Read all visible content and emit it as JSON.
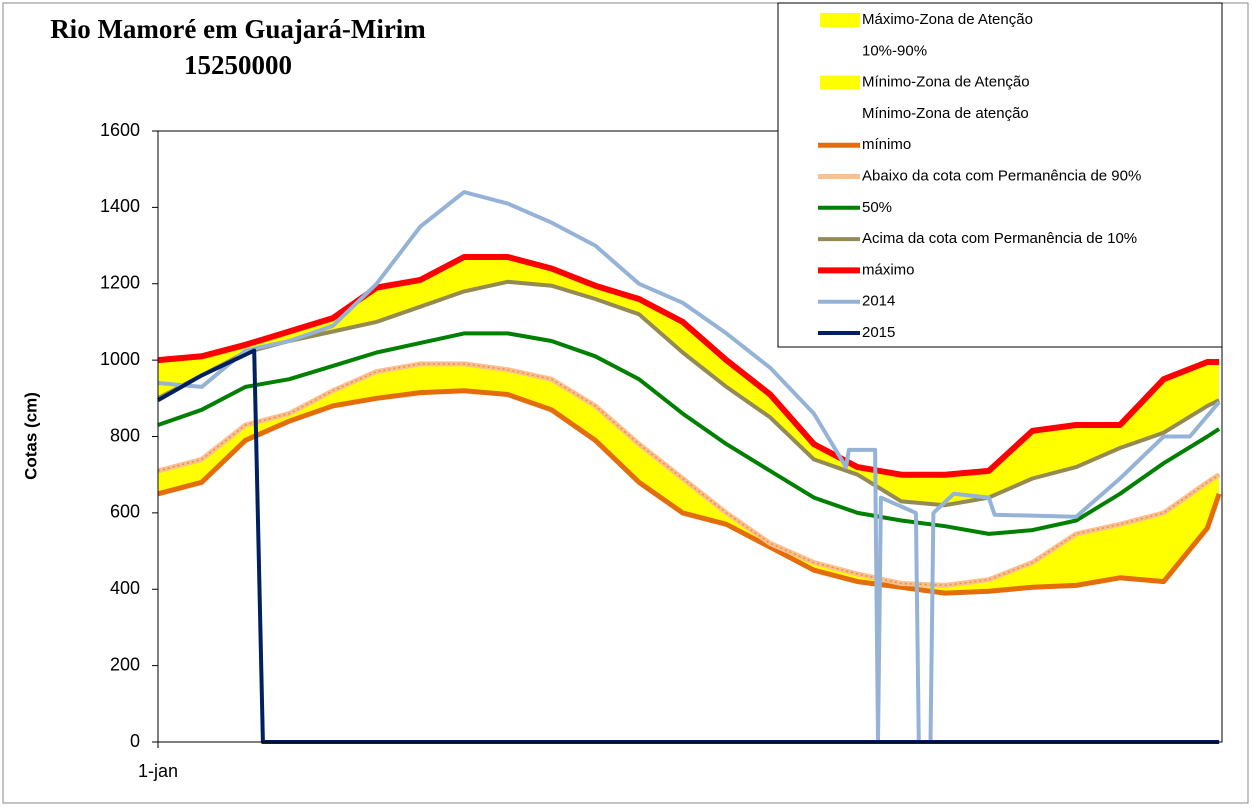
{
  "chart_data": {
    "type": "line",
    "title": "Rio Mamoré em Guajará-Mirim",
    "subtitle": "15250000",
    "y_label": "Cotas (cm)",
    "xlim": [
      0,
      365
    ],
    "xticks": [
      {
        "value": 0,
        "label": "1-jan"
      }
    ],
    "ylim": [
      0,
      1600
    ],
    "yticks": [
      0,
      200,
      400,
      600,
      800,
      1000,
      1200,
      1400,
      1600
    ],
    "x": [
      0,
      15,
      30,
      45,
      60,
      75,
      90,
      105,
      120,
      135,
      150,
      165,
      180,
      195,
      210,
      225,
      240,
      255,
      270,
      285,
      300,
      315,
      330,
      345,
      360,
      364
    ],
    "bands": [
      {
        "name": "Máximo-Zona de Atenção",
        "color": "#ffff00"
      },
      {
        "name": "10%-90%",
        "color": "#ffffff"
      },
      {
        "name": "Mínimo-Zona de Atenção",
        "color": "#ffff00"
      },
      {
        "name": "Mínimo-Zona de atenção",
        "color": "#ffffff"
      }
    ],
    "series": [
      {
        "name": "mínimo",
        "color": "#e46c0a",
        "values": [
          650,
          680,
          790,
          840,
          880,
          900,
          915,
          920,
          910,
          870,
          790,
          680,
          600,
          570,
          510,
          450,
          420,
          405,
          390,
          395,
          405,
          410,
          430,
          420,
          560,
          650
        ]
      },
      {
        "name": "Abaixo da cota com Permanência de 90%",
        "color": "#fac090",
        "values": [
          710,
          740,
          830,
          860,
          920,
          970,
          990,
          990,
          975,
          950,
          880,
          780,
          690,
          600,
          520,
          470,
          440,
          415,
          410,
          425,
          470,
          545,
          570,
          600,
          680,
          700
        ]
      },
      {
        "name": "50%",
        "color": "#008000",
        "values": [
          830,
          870,
          930,
          950,
          985,
          1020,
          1045,
          1070,
          1070,
          1050,
          1010,
          950,
          860,
          780,
          710,
          640,
          600,
          580,
          565,
          545,
          555,
          580,
          650,
          730,
          800,
          820
        ]
      },
      {
        "name": "Acima da cota com Permanência de 10%",
        "color": "#948a54",
        "values": [
          900,
          960,
          1020,
          1050,
          1075,
          1100,
          1140,
          1180,
          1205,
          1195,
          1160,
          1120,
          1020,
          930,
          850,
          740,
          700,
          630,
          620,
          640,
          690,
          720,
          770,
          810,
          880,
          895
        ]
      },
      {
        "name": "máximo",
        "color": "#ff0000",
        "values": [
          1000,
          1010,
          1040,
          1075,
          1110,
          1190,
          1210,
          1270,
          1270,
          1240,
          1195,
          1160,
          1100,
          1000,
          910,
          780,
          720,
          700,
          700,
          710,
          815,
          830,
          830,
          950,
          995,
          995
        ]
      },
      {
        "name": "2014",
        "color": "#95b3d7",
        "x": [
          0,
          15,
          30,
          45,
          60,
          75,
          90,
          105,
          120,
          135,
          150,
          165,
          180,
          195,
          210,
          225,
          236,
          237,
          246,
          247,
          248,
          260,
          261,
          265,
          266,
          273,
          285,
          287,
          315,
          330,
          345,
          354,
          364
        ],
        "values": [
          940,
          930,
          1025,
          1050,
          1090,
          1200,
          1350,
          1440,
          1410,
          1360,
          1300,
          1200,
          1150,
          1070,
          980,
          860,
          720,
          765,
          765,
          0,
          640,
          600,
          0,
          0,
          600,
          650,
          640,
          595,
          590,
          690,
          800,
          800,
          890
        ]
      },
      {
        "name": "2015",
        "color": "#002060",
        "x": [
          0,
          15,
          33,
          36,
          364
        ],
        "values": [
          895,
          960,
          1025,
          0,
          0
        ]
      }
    ]
  }
}
